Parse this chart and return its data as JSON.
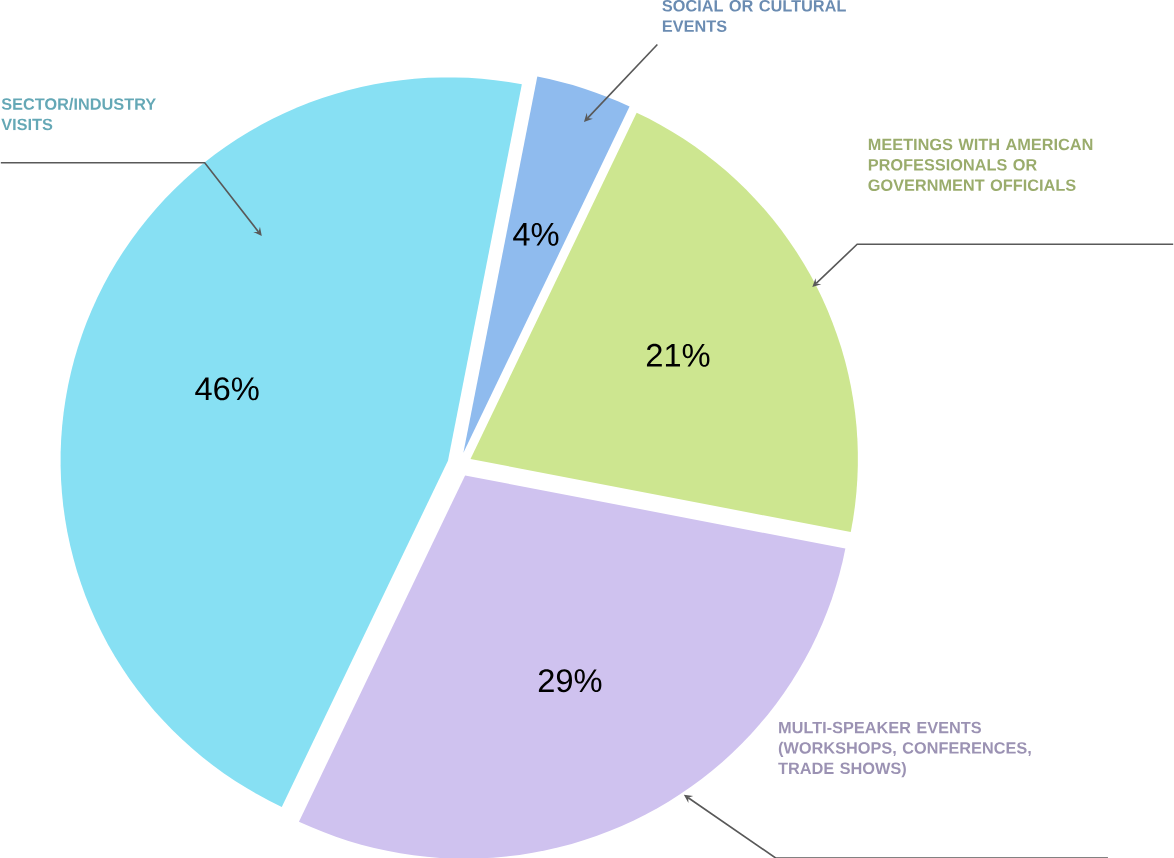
{
  "chart_data": {
    "type": "pie",
    "categories": [
      "SOCIAL OR CULTURAL EVENTS",
      "MEETINGS WITH AMERICAN PROFESSIONALS OR GOVERNMENT OFFICIALS",
      "MULTI-SPEAKER EVENTS (WORKSHOPS, CONFERENCES, TRADE SHOWS)",
      "SECTOR/INDUSTRY VISITS"
    ],
    "values": [
      4,
      21,
      29,
      46
    ],
    "value_labels": [
      "4%",
      "21%",
      "29%",
      "46%"
    ],
    "colors": [
      "#8fbbee",
      "#cde690",
      "#cfc2ef",
      "#87e0f3"
    ]
  }
}
